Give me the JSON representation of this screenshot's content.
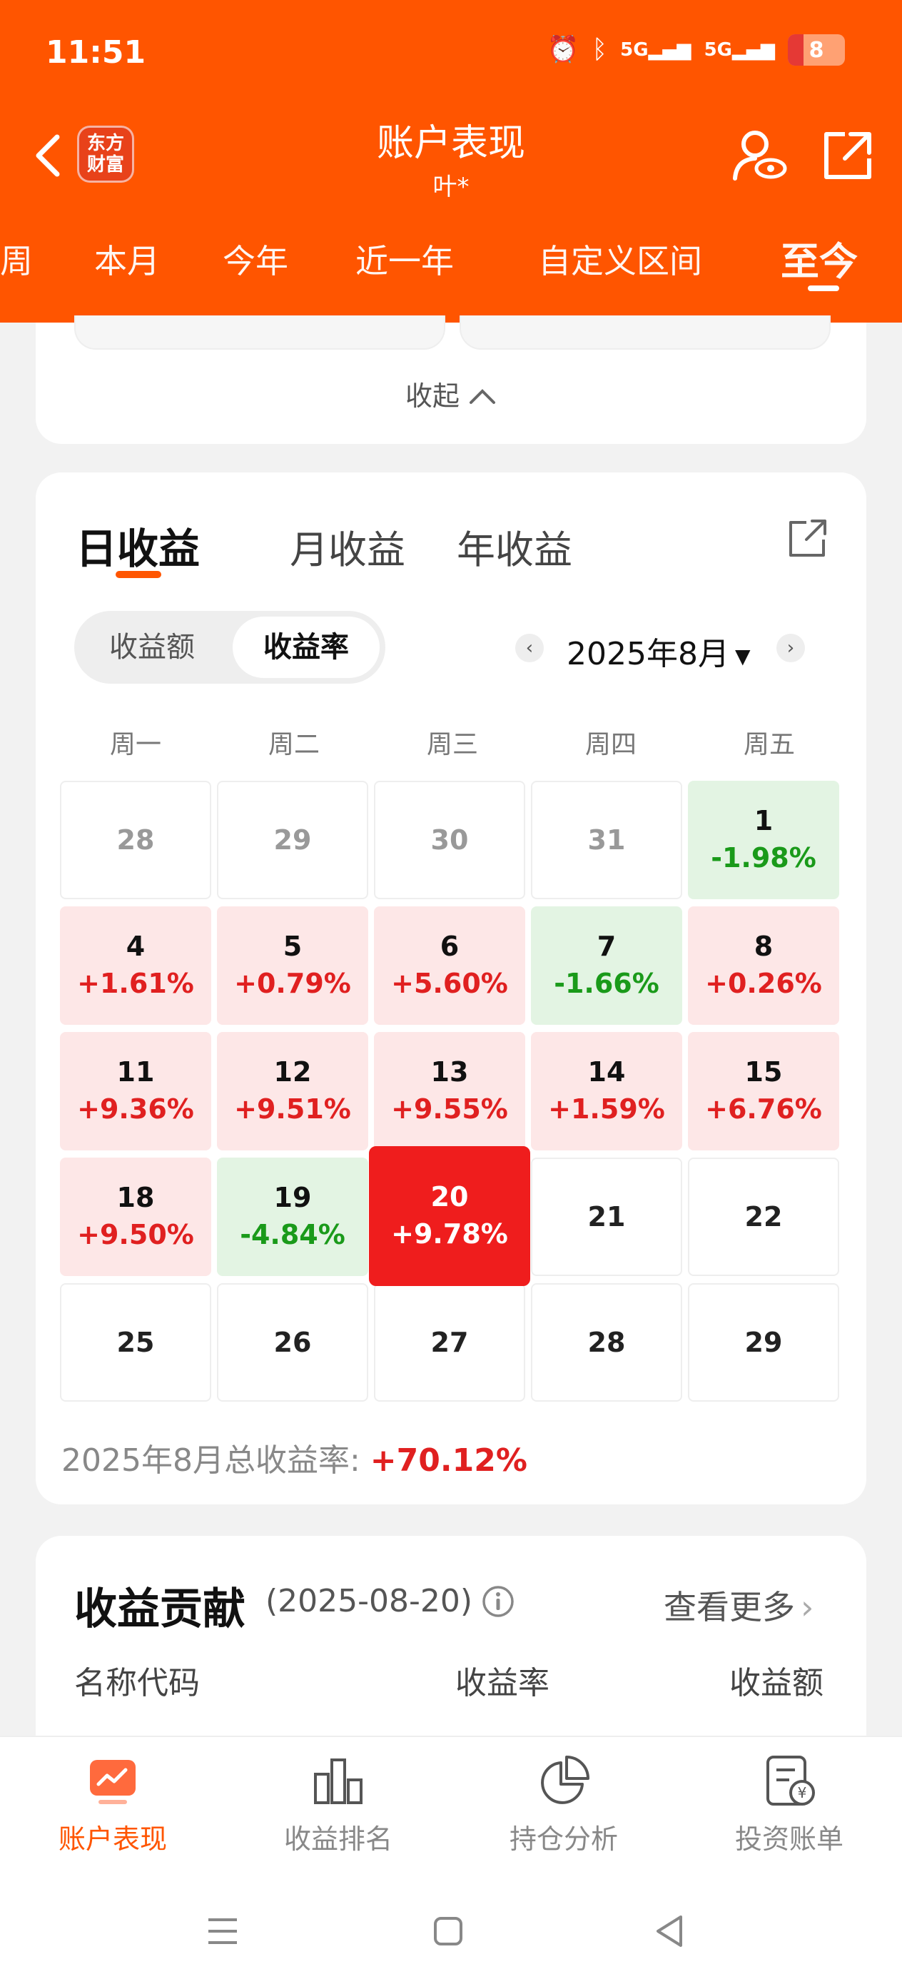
{
  "status_bar": {
    "time": "11:51",
    "signal1": "5G",
    "signal2": "5G",
    "battery": "8"
  },
  "header": {
    "logo_line1": "东方",
    "logo_line2": "财富",
    "title": "账户表现",
    "subtitle": "叶*"
  },
  "period_tabs": [
    {
      "label": "周"
    },
    {
      "label": "本月"
    },
    {
      "label": "今年"
    },
    {
      "label": "近一年"
    },
    {
      "label": "自定义区间"
    },
    {
      "label": "至今"
    }
  ],
  "collapse": {
    "label": "收起"
  },
  "returns_tabs": [
    {
      "label": "日收益"
    },
    {
      "label": "月收益"
    },
    {
      "label": "年收益"
    }
  ],
  "segment": {
    "option1": "收益额",
    "option2": "收益率"
  },
  "calendar": {
    "month": "2025年8月",
    "weekdays": [
      "周一",
      "周二",
      "周三",
      "周四",
      "周五"
    ],
    "rows": [
      [
        {
          "day": "28",
          "pct": "",
          "state": "past"
        },
        {
          "day": "29",
          "pct": "",
          "state": "past"
        },
        {
          "day": "30",
          "pct": "",
          "state": "past"
        },
        {
          "day": "31",
          "pct": "",
          "state": "past"
        },
        {
          "day": "1",
          "pct": "-1.98%",
          "state": "down"
        }
      ],
      [
        {
          "day": "4",
          "pct": "+1.61%",
          "state": "up"
        },
        {
          "day": "5",
          "pct": "+0.79%",
          "state": "up"
        },
        {
          "day": "6",
          "pct": "+5.60%",
          "state": "up"
        },
        {
          "day": "7",
          "pct": "-1.66%",
          "state": "down"
        },
        {
          "day": "8",
          "pct": "+0.26%",
          "state": "up"
        }
      ],
      [
        {
          "day": "11",
          "pct": "+9.36%",
          "state": "up"
        },
        {
          "day": "12",
          "pct": "+9.51%",
          "state": "up"
        },
        {
          "day": "13",
          "pct": "+9.55%",
          "state": "up"
        },
        {
          "day": "14",
          "pct": "+1.59%",
          "state": "up"
        },
        {
          "day": "15",
          "pct": "+6.76%",
          "state": "up"
        }
      ],
      [
        {
          "day": "18",
          "pct": "+9.50%",
          "state": "up"
        },
        {
          "day": "19",
          "pct": "-4.84%",
          "state": "down"
        },
        {
          "day": "20",
          "pct": "+9.78%",
          "state": "today"
        },
        {
          "day": "21",
          "pct": "",
          "state": "future"
        },
        {
          "day": "22",
          "pct": "",
          "state": "future"
        }
      ],
      [
        {
          "day": "25",
          "pct": "",
          "state": "future"
        },
        {
          "day": "26",
          "pct": "",
          "state": "future"
        },
        {
          "day": "27",
          "pct": "",
          "state": "future"
        },
        {
          "day": "28",
          "pct": "",
          "state": "future"
        },
        {
          "day": "29",
          "pct": "",
          "state": "future"
        }
      ]
    ],
    "total_label": "2025年8月总收益率: ",
    "total_value": "+70.12%"
  },
  "contribution": {
    "title": "收益贡献",
    "date": "(2025-08-20)",
    "more": "查看更多",
    "col_name": "名称代码",
    "col_rate": "收益率",
    "col_amount": "收益额"
  },
  "bottom_nav": [
    {
      "label": "账户表现",
      "icon": "account-performance-icon"
    },
    {
      "label": "收益排名",
      "icon": "bar-chart-icon"
    },
    {
      "label": "持仓分析",
      "icon": "pie-chart-icon"
    },
    {
      "label": "投资账单",
      "icon": "bill-icon"
    }
  ],
  "colors": {
    "brand": "#ff5500",
    "up": "#e02020",
    "down": "#1a9a1a"
  }
}
